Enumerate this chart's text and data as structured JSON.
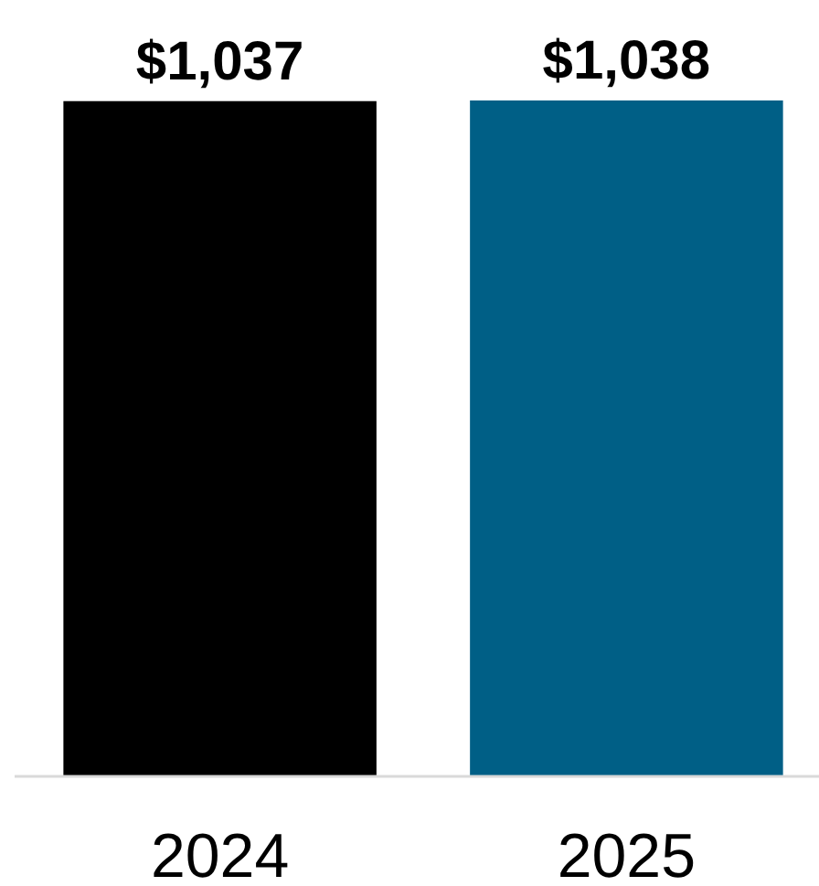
{
  "chart_data": {
    "type": "bar",
    "categories": [
      "2024",
      "2025"
    ],
    "values": [
      1037,
      1038
    ],
    "colors": [
      "#000000",
      "#005f86"
    ],
    "value_labels": [
      "$1,037",
      "$1,038"
    ]
  }
}
